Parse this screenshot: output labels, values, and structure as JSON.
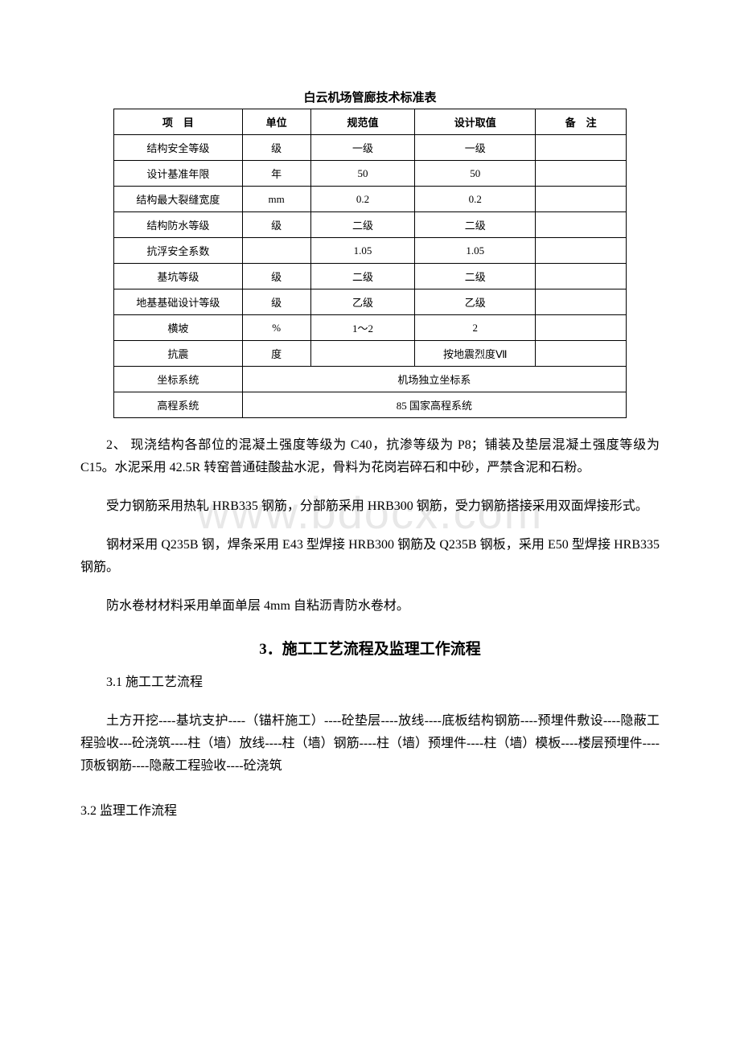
{
  "watermark": "www.bdocx.com",
  "table": {
    "title": "白云机场管廊技术标准表",
    "headers": {
      "item": "项　目",
      "unit": "单位",
      "spec": "规范值",
      "design": "设计取值",
      "note": "备　注"
    },
    "rows": [
      {
        "item": "结构安全等级",
        "unit": "级",
        "spec": "一级",
        "design": "一级",
        "note": ""
      },
      {
        "item": "设计基准年限",
        "unit": "年",
        "spec": "50",
        "design": "50",
        "note": ""
      },
      {
        "item": "结构最大裂缝宽度",
        "unit": "mm",
        "spec": "0.2",
        "design": "0.2",
        "note": ""
      },
      {
        "item": "结构防水等级",
        "unit": "级",
        "spec": "二级",
        "design": "二级",
        "note": ""
      },
      {
        "item": "抗浮安全系数",
        "unit": "",
        "spec": "1.05",
        "design": "1.05",
        "note": ""
      },
      {
        "item": "基坑等级",
        "unit": "级",
        "spec": "二级",
        "design": "二级",
        "note": ""
      },
      {
        "item": "地基基础设计等级",
        "unit": "级",
        "spec": "乙级",
        "design": "乙级",
        "note": ""
      },
      {
        "item": "横坡",
        "unit": "%",
        "spec": "1～2",
        "design": "2",
        "note": ""
      }
    ],
    "seismic": {
      "item": "抗震",
      "unit": "度",
      "design": "按地震烈度Ⅶ"
    },
    "coord": {
      "item": "坐标系统",
      "merged": "机场独立坐标系"
    },
    "elev": {
      "item": "高程系统",
      "merged": "85 国家高程系统"
    }
  },
  "paragraphs": {
    "p1": "2、 现浇结构各部位的混凝土强度等级为 C40，抗渗等级为 P8；铺装及垫层混凝土强度等级为 C15。水泥采用 42.5R 转窑普通硅酸盐水泥，骨料为花岗岩碎石和中砂，严禁含泥和石粉。",
    "p2": "受力钢筋采用热轧 HRB335 钢筋，分部筋采用 HRB300 钢筋，受力钢筋搭接采用双面焊接形式。",
    "p3": "钢材采用 Q235B 钢，焊条采用 E43 型焊接 HRB300 钢筋及 Q235B 钢板，采用 E50 型焊接 HRB335 钢筋。",
    "p4": "防水卷材材料采用单面单层 4mm 自粘沥青防水卷材。"
  },
  "section3": {
    "title": "3．施工工艺流程及监理工作流程",
    "sub1": "3.1 施工工艺流程",
    "flow": "土方开挖----基坑支护----（锚杆施工）----砼垫层----放线----底板结构钢筋----预埋件敷设----隐蔽工程验收---砼浇筑----柱（墙）放线----柱（墙）钢筋----柱（墙）预埋件----柱（墙）模板----楼层预埋件----顶板钢筋----隐蔽工程验收----砼浇筑",
    "sub2": "3.2 监理工作流程"
  }
}
